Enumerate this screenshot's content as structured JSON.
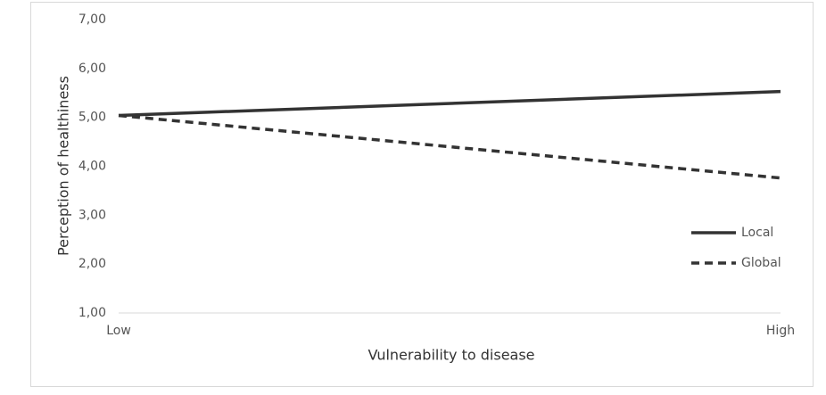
{
  "chart_data": {
    "type": "line",
    "xlabel": "Vulnerability to disease",
    "ylabel": "Perception of healthiness",
    "categories": [
      "Low",
      "High"
    ],
    "series": [
      {
        "name": "Local",
        "color": "#333333",
        "line_style": "solid",
        "values": [
          5.04,
          5.53
        ]
      },
      {
        "name": "Global",
        "color": "#333333",
        "line_style": "dashed",
        "values": [
          5.04,
          3.76
        ]
      }
    ],
    "ylim": [
      1,
      7
    ],
    "yticks": [
      {
        "value": 1,
        "label": "1,00"
      },
      {
        "value": 2,
        "label": "2,00"
      },
      {
        "value": 3,
        "label": "3,00"
      },
      {
        "value": 4,
        "label": "4,00"
      },
      {
        "value": 5,
        "label": "5,00"
      },
      {
        "value": 6,
        "label": "6,00"
      },
      {
        "value": 7,
        "label": "7,00"
      }
    ],
    "grid": false,
    "legend_position": "right"
  }
}
